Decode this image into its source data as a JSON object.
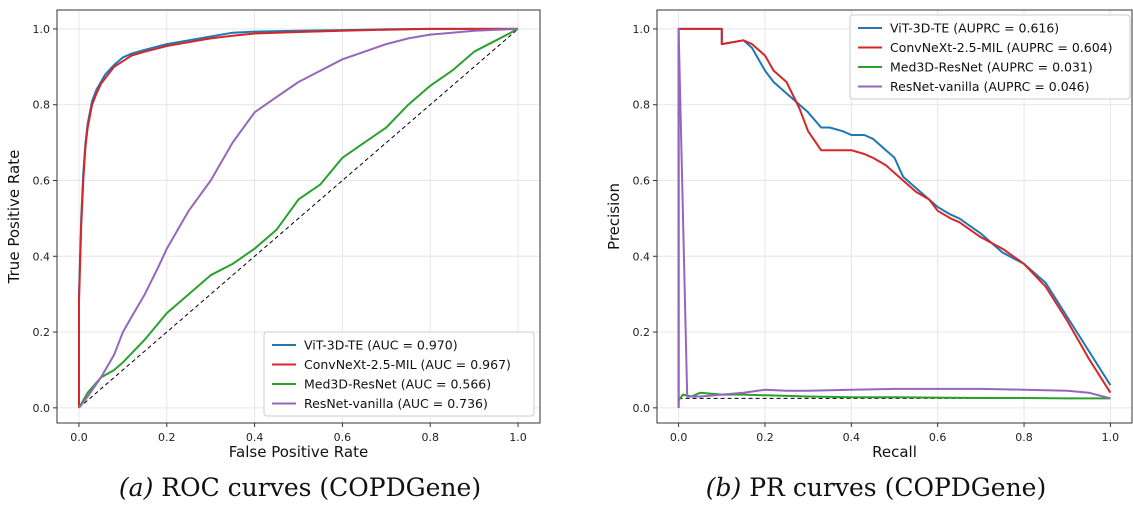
{
  "chart_data": [
    {
      "type": "line",
      "caption_tag": "(a)",
      "caption_text": "ROC curves (COPDGene)",
      "xlabel": "False Positive Rate",
      "ylabel": "True Positive Rate",
      "xlim": [
        -0.05,
        1.05
      ],
      "ylim": [
        -0.04,
        1.05
      ],
      "xticks": [
        0.0,
        0.2,
        0.4,
        0.6,
        0.8,
        1.0
      ],
      "yticks": [
        0.0,
        0.2,
        0.4,
        0.6,
        0.8,
        1.0
      ],
      "tick_labels": [
        "0.0",
        "0.2",
        "0.4",
        "0.6",
        "0.8",
        "1.0"
      ],
      "grid": true,
      "legend_position": "lower-right",
      "reference_line": {
        "style": "dashed",
        "color": "#000000",
        "x": [
          0,
          1
        ],
        "y": [
          0,
          1
        ]
      },
      "series": [
        {
          "name": "ViT-3D-TE (AUC = 0.970)",
          "color": "#1f77b4",
          "x": [
            0,
            0,
            0.005,
            0.01,
            0.015,
            0.02,
            0.03,
            0.04,
            0.05,
            0.06,
            0.08,
            0.1,
            0.12,
            0.15,
            0.2,
            0.25,
            0.3,
            0.35,
            0.4,
            0.5,
            0.6,
            0.7,
            0.8,
            0.9,
            1.0
          ],
          "y": [
            0,
            0.3,
            0.5,
            0.62,
            0.7,
            0.75,
            0.81,
            0.84,
            0.86,
            0.88,
            0.905,
            0.925,
            0.935,
            0.945,
            0.96,
            0.97,
            0.98,
            0.99,
            0.993,
            0.995,
            0.997,
            0.999,
            1.0,
            1.0,
            1.0
          ]
        },
        {
          "name": "ConvNeXt-2.5-MIL (AUC = 0.967)",
          "color": "#d62728",
          "x": [
            0,
            0,
            0.005,
            0.01,
            0.015,
            0.02,
            0.03,
            0.04,
            0.05,
            0.06,
            0.08,
            0.1,
            0.12,
            0.15,
            0.2,
            0.25,
            0.3,
            0.35,
            0.4,
            0.5,
            0.6,
            0.7,
            0.8,
            0.9,
            1.0
          ],
          "y": [
            0,
            0.28,
            0.48,
            0.6,
            0.69,
            0.74,
            0.8,
            0.83,
            0.855,
            0.87,
            0.9,
            0.915,
            0.93,
            0.94,
            0.955,
            0.965,
            0.975,
            0.982,
            0.988,
            0.992,
            0.995,
            0.998,
            1.0,
            1.0,
            1.0
          ]
        },
        {
          "name": "Med3D-ResNet (AUC = 0.566)",
          "color": "#2ca02c",
          "x": [
            0,
            0.02,
            0.05,
            0.08,
            0.1,
            0.15,
            0.2,
            0.25,
            0.3,
            0.35,
            0.4,
            0.45,
            0.5,
            0.55,
            0.6,
            0.65,
            0.7,
            0.75,
            0.8,
            0.85,
            0.9,
            0.95,
            1.0
          ],
          "y": [
            0,
            0.04,
            0.08,
            0.1,
            0.12,
            0.18,
            0.25,
            0.3,
            0.35,
            0.38,
            0.42,
            0.47,
            0.55,
            0.59,
            0.66,
            0.7,
            0.74,
            0.8,
            0.85,
            0.89,
            0.94,
            0.97,
            1.0
          ]
        },
        {
          "name": "ResNet-vanilla (AUC = 0.736)",
          "color": "#9467bd",
          "x": [
            0,
            0.02,
            0.05,
            0.08,
            0.1,
            0.12,
            0.15,
            0.18,
            0.2,
            0.25,
            0.3,
            0.35,
            0.4,
            0.45,
            0.5,
            0.55,
            0.6,
            0.65,
            0.7,
            0.75,
            0.8,
            0.85,
            0.9,
            1.0
          ],
          "y": [
            0,
            0.03,
            0.08,
            0.14,
            0.2,
            0.24,
            0.3,
            0.37,
            0.42,
            0.52,
            0.6,
            0.7,
            0.78,
            0.82,
            0.86,
            0.89,
            0.92,
            0.94,
            0.96,
            0.975,
            0.985,
            0.99,
            0.995,
            1.0
          ]
        }
      ]
    },
    {
      "type": "line",
      "caption_tag": "(b)",
      "caption_text": "PR curves (COPDGene)",
      "xlabel": "Recall",
      "ylabel": "Precision",
      "xlim": [
        -0.05,
        1.05
      ],
      "ylim": [
        -0.04,
        1.05
      ],
      "xticks": [
        0.0,
        0.2,
        0.4,
        0.6,
        0.8,
        1.0
      ],
      "yticks": [
        0.0,
        0.2,
        0.4,
        0.6,
        0.8,
        1.0
      ],
      "tick_labels": [
        "0.0",
        "0.2",
        "0.4",
        "0.6",
        "0.8",
        "1.0"
      ],
      "grid": true,
      "legend_position": "upper-right",
      "reference_line": {
        "style": "dashed",
        "color": "#000000",
        "x": [
          0,
          1
        ],
        "y": [
          0.025,
          0.025
        ]
      },
      "series": [
        {
          "name": "ViT-3D-TE (AUPRC = 0.616)",
          "color": "#1f77b4",
          "x": [
            0,
            0,
            0.1,
            0.1,
            0.15,
            0.17,
            0.2,
            0.22,
            0.25,
            0.28,
            0.3,
            0.33,
            0.35,
            0.38,
            0.4,
            0.43,
            0.45,
            0.48,
            0.5,
            0.52,
            0.55,
            0.58,
            0.6,
            0.63,
            0.65,
            0.7,
            0.75,
            0.8,
            0.85,
            0.9,
            0.95,
            1.0
          ],
          "y": [
            0,
            1.0,
            1.0,
            0.96,
            0.97,
            0.95,
            0.89,
            0.86,
            0.83,
            0.8,
            0.78,
            0.74,
            0.74,
            0.73,
            0.72,
            0.72,
            0.71,
            0.68,
            0.66,
            0.61,
            0.58,
            0.55,
            0.53,
            0.51,
            0.5,
            0.46,
            0.41,
            0.38,
            0.33,
            0.24,
            0.15,
            0.06
          ]
        },
        {
          "name": "ConvNeXt-2.5-MIL (AUPRC = 0.604)",
          "color": "#d62728",
          "x": [
            0,
            0,
            0.1,
            0.1,
            0.15,
            0.17,
            0.2,
            0.22,
            0.25,
            0.28,
            0.3,
            0.33,
            0.35,
            0.38,
            0.4,
            0.43,
            0.45,
            0.48,
            0.5,
            0.52,
            0.55,
            0.58,
            0.6,
            0.63,
            0.65,
            0.7,
            0.75,
            0.8,
            0.85,
            0.9,
            0.95,
            1.0
          ],
          "y": [
            0,
            1.0,
            1.0,
            0.96,
            0.97,
            0.96,
            0.93,
            0.89,
            0.86,
            0.79,
            0.73,
            0.68,
            0.68,
            0.68,
            0.68,
            0.67,
            0.66,
            0.64,
            0.62,
            0.6,
            0.57,
            0.55,
            0.52,
            0.5,
            0.49,
            0.45,
            0.42,
            0.38,
            0.32,
            0.23,
            0.13,
            0.04
          ]
        },
        {
          "name": "Med3D-ResNet (AUPRC = 0.031)",
          "color": "#2ca02c",
          "x": [
            0,
            0.01,
            0.03,
            0.05,
            0.1,
            0.15,
            0.2,
            0.3,
            0.4,
            0.5,
            0.6,
            0.7,
            0.8,
            0.9,
            1.0
          ],
          "y": [
            0.02,
            0.035,
            0.03,
            0.04,
            0.035,
            0.035,
            0.033,
            0.03,
            0.028,
            0.028,
            0.027,
            0.026,
            0.026,
            0.025,
            0.025
          ]
        },
        {
          "name": "ResNet-vanilla (AUPRC = 0.046)",
          "color": "#9467bd",
          "x": [
            0,
            0,
            0.02,
            0.05,
            0.1,
            0.15,
            0.2,
            0.25,
            0.3,
            0.4,
            0.5,
            0.6,
            0.7,
            0.8,
            0.9,
            0.95,
            1.0
          ],
          "y": [
            0,
            1.0,
            0.03,
            0.03,
            0.035,
            0.04,
            0.048,
            0.045,
            0.045,
            0.048,
            0.05,
            0.05,
            0.05,
            0.048,
            0.045,
            0.04,
            0.025
          ]
        }
      ]
    }
  ]
}
